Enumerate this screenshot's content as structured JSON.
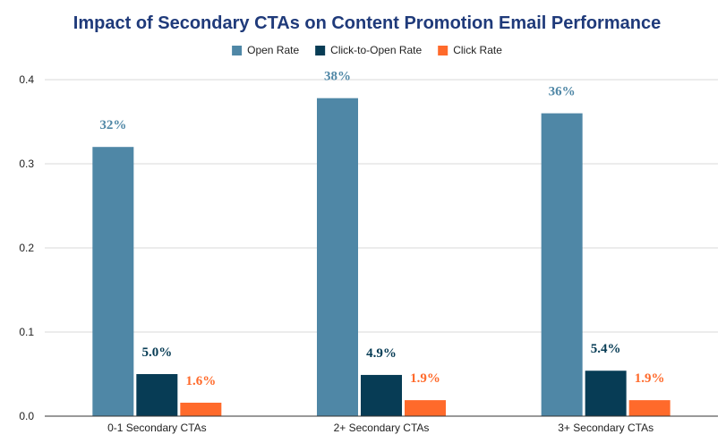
{
  "chart_data": {
    "type": "bar",
    "title": "Impact of Secondary CTAs on Content Promotion Email Performance",
    "title_color": "#1f3a7a",
    "xlabel": "",
    "ylabel": "",
    "ylim": [
      0,
      0.4
    ],
    "yticks": [
      "0.0",
      "0.1",
      "0.2",
      "0.3",
      "0.4"
    ],
    "grid": true,
    "legend_position": "top-center",
    "categories": [
      "0-1 Secondary CTAs",
      "2+ Secondary CTAs",
      "3+ Secondary CTAs"
    ],
    "series": [
      {
        "name": "Open Rate",
        "color": "#4f87a6",
        "values": [
          0.32,
          0.378,
          0.36
        ],
        "labels": [
          "32%",
          "38%",
          "36%"
        ]
      },
      {
        "name": "Click-to-Open Rate",
        "color": "#073c55",
        "values": [
          0.05,
          0.049,
          0.054
        ],
        "labels": [
          "5.0%",
          "4.9%",
          "5.4%"
        ]
      },
      {
        "name": "Click Rate",
        "color": "#ff6a2b",
        "values": [
          0.016,
          0.019,
          0.019
        ],
        "labels": [
          "1.6%",
          "1.9%",
          "1.9%"
        ]
      }
    ]
  }
}
